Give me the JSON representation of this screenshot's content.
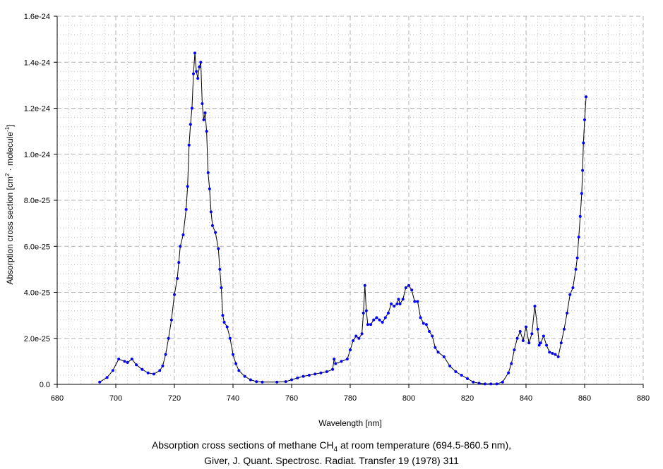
{
  "chart_data": {
    "type": "line",
    "title_lines": [
      "Absorption cross sections of methane CH",
      "4",
      " at room temperature (694.5-860.5 nm),",
      "Giver, J. Quant. Spectrosc. Radiat. Transfer 19 (1978) 311"
    ],
    "xlabel": "Wavelength [nm]",
    "ylabel_parts": [
      "Absorption cross section [cm",
      "2",
      " · molecule",
      "-1",
      "]"
    ],
    "xlim": [
      680,
      880
    ],
    "ylim": [
      0,
      1.6e-24
    ],
    "xticks": [
      "680",
      "700",
      "720",
      "740",
      "760",
      "780",
      "800",
      "820",
      "840",
      "860",
      "880"
    ],
    "yticks": [
      "0.0",
      "2.0e-25",
      "4.0e-25",
      "6.0e-25",
      "8.0e-25",
      "1.0e-24",
      "1.2e-24",
      "1.4e-24",
      "1.6e-24"
    ],
    "grid": true,
    "line_color": "#000000",
    "marker_color": "#0000ff",
    "y_unit_scale": 1e-25,
    "points": [
      [
        694.5,
        0.1
      ],
      [
        697,
        0.3
      ],
      [
        699,
        0.6
      ],
      [
        701,
        1.1
      ],
      [
        703,
        1.0
      ],
      [
        704,
        0.95
      ],
      [
        705.5,
        1.1
      ],
      [
        707,
        0.85
      ],
      [
        709,
        0.65
      ],
      [
        711,
        0.5
      ],
      [
        713,
        0.45
      ],
      [
        715,
        0.6
      ],
      [
        716,
        0.8
      ],
      [
        717,
        1.3
      ],
      [
        718,
        2.0
      ],
      [
        719,
        2.8
      ],
      [
        720,
        3.9
      ],
      [
        721,
        4.6
      ],
      [
        721.5,
        5.3
      ],
      [
        722,
        6.0
      ],
      [
        723,
        6.5
      ],
      [
        724,
        7.6
      ],
      [
        724.5,
        8.6
      ],
      [
        725,
        10.4
      ],
      [
        725.5,
        11.3
      ],
      [
        726,
        12.0
      ],
      [
        726.5,
        13.5
      ],
      [
        727,
        14.4
      ],
      [
        727.5,
        13.6
      ],
      [
        728,
        13.3
      ],
      [
        728.5,
        13.8
      ],
      [
        729,
        14.0
      ],
      [
        729.5,
        12.2
      ],
      [
        730,
        11.5
      ],
      [
        730.5,
        11.8
      ],
      [
        731,
        11.0
      ],
      [
        731.5,
        9.2
      ],
      [
        732,
        8.5
      ],
      [
        732.5,
        7.5
      ],
      [
        733,
        6.9
      ],
      [
        734,
        6.6
      ],
      [
        735,
        5.9
      ],
      [
        735.5,
        5.0
      ],
      [
        736,
        4.2
      ],
      [
        736.5,
        3.0
      ],
      [
        737,
        2.7
      ],
      [
        738,
        2.5
      ],
      [
        739,
        2.0
      ],
      [
        740,
        1.3
      ],
      [
        741,
        0.9
      ],
      [
        742,
        0.6
      ],
      [
        744,
        0.35
      ],
      [
        746,
        0.2
      ],
      [
        748,
        0.12
      ],
      [
        750,
        0.1
      ],
      [
        755,
        0.1
      ],
      [
        758,
        0.12
      ],
      [
        760,
        0.2
      ],
      [
        762,
        0.28
      ],
      [
        764,
        0.35
      ],
      [
        766,
        0.4
      ],
      [
        768,
        0.45
      ],
      [
        770,
        0.5
      ],
      [
        772,
        0.55
      ],
      [
        774,
        0.65
      ],
      [
        774.5,
        1.1
      ],
      [
        775,
        0.9
      ],
      [
        777,
        1.0
      ],
      [
        779,
        1.1
      ],
      [
        780,
        1.5
      ],
      [
        781,
        1.9
      ],
      [
        782,
        2.1
      ],
      [
        783,
        2.0
      ],
      [
        784,
        2.2
      ],
      [
        784.5,
        3.1
      ],
      [
        785,
        4.3
      ],
      [
        785.5,
        3.2
      ],
      [
        786,
        2.6
      ],
      [
        787,
        2.6
      ],
      [
        788,
        2.8
      ],
      [
        789,
        2.9
      ],
      [
        790,
        2.8
      ],
      [
        791,
        2.7
      ],
      [
        792,
        2.9
      ],
      [
        793,
        3.1
      ],
      [
        794,
        3.5
      ],
      [
        795,
        3.4
      ],
      [
        796,
        3.5
      ],
      [
        796.5,
        3.7
      ],
      [
        797,
        3.5
      ],
      [
        798,
        3.7
      ],
      [
        799,
        4.2
      ],
      [
        800,
        4.3
      ],
      [
        801,
        4.1
      ],
      [
        802,
        3.6
      ],
      [
        803,
        3.6
      ],
      [
        804,
        2.9
      ],
      [
        805,
        2.65
      ],
      [
        806,
        2.6
      ],
      [
        807,
        2.3
      ],
      [
        808,
        2.1
      ],
      [
        809,
        1.6
      ],
      [
        810,
        1.4
      ],
      [
        812,
        1.2
      ],
      [
        814,
        0.8
      ],
      [
        816,
        0.55
      ],
      [
        818,
        0.4
      ],
      [
        820,
        0.25
      ],
      [
        822,
        0.1
      ],
      [
        824,
        0.05
      ],
      [
        826,
        0.02
      ],
      [
        828,
        0.02
      ],
      [
        830,
        0.02
      ],
      [
        832,
        0.1
      ],
      [
        834,
        0.5
      ],
      [
        835,
        0.9
      ],
      [
        836,
        1.5
      ],
      [
        837,
        2.0
      ],
      [
        838,
        2.3
      ],
      [
        839,
        1.9
      ],
      [
        840,
        2.5
      ],
      [
        841,
        1.8
      ],
      [
        842,
        2.2
      ],
      [
        843,
        3.4
      ],
      [
        844,
        2.4
      ],
      [
        844.5,
        1.7
      ],
      [
        845,
        1.8
      ],
      [
        846,
        2.1
      ],
      [
        847,
        1.7
      ],
      [
        848,
        1.4
      ],
      [
        849,
        1.35
      ],
      [
        850,
        1.3
      ],
      [
        851,
        1.2
      ],
      [
        852,
        1.8
      ],
      [
        853,
        2.4
      ],
      [
        854,
        3.1
      ],
      [
        855,
        3.9
      ],
      [
        856,
        4.2
      ],
      [
        857,
        5.0
      ],
      [
        857.5,
        5.5
      ],
      [
        858,
        6.4
      ],
      [
        858.5,
        7.3
      ],
      [
        859,
        8.3
      ],
      [
        859.3,
        9.3
      ],
      [
        859.6,
        10.5
      ],
      [
        860,
        11.5
      ],
      [
        860.5,
        12.5
      ]
    ]
  }
}
